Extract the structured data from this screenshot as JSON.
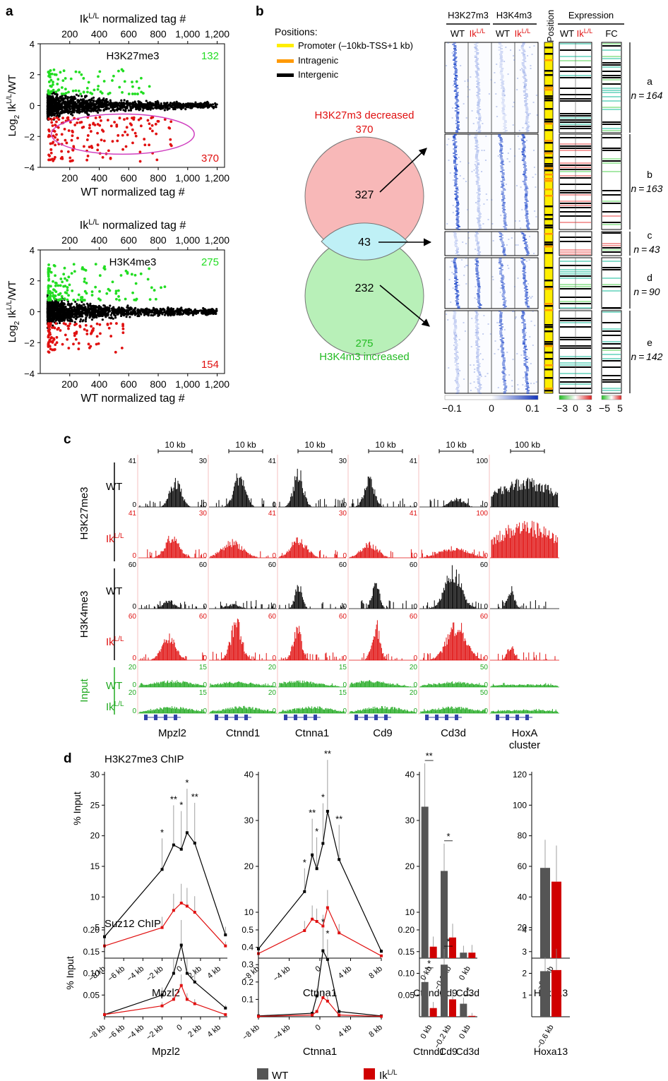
{
  "panel_labels": {
    "a": "a",
    "b": "b",
    "c": "c",
    "d": "d"
  },
  "colors": {
    "green": "#22dd22",
    "red": "#e01010",
    "black": "#000000",
    "blue": "#2244cc",
    "magenta": "#d040c0",
    "input_green": "#22aa22",
    "wt_bar": "#555555",
    "ik_bar": "#d00000"
  },
  "ik_label": {
    "base": "Ik",
    "sup": "L/L"
  },
  "panel_a": {
    "top_axis_title": "normalized tag #",
    "bottom_axis_title": "WT normalized tag #",
    "y_axis_title_prefix": "Log",
    "y_axis_title_sub": "2",
    "y_axis_title_suffix": "/WT",
    "x_ticks": [
      "200",
      "400",
      "600",
      "800",
      "1,000",
      "1,200"
    ],
    "y_ticks": [
      "4",
      "2",
      "0",
      "−2",
      "−4"
    ],
    "plots": [
      {
        "mark": "H3K27me3",
        "up_count": "132",
        "down_count": "370"
      },
      {
        "mark": "H3K4me3",
        "up_count": "275",
        "down_count": "154"
      }
    ]
  },
  "panel_b": {
    "positions_title": "Positions:",
    "legend": [
      {
        "label": "Promoter (–10kb-TSS+1 kb)",
        "color": "#ffee00"
      },
      {
        "label": "Intragenic",
        "color": "#ff9900"
      },
      {
        "label": "Intergenic",
        "color": "#000000"
      }
    ],
    "venn_top_title": "H3K27m3 decreased",
    "venn_top_total": "370",
    "venn_top_only": "327",
    "venn_overlap": "43",
    "venn_bottom_only": "232",
    "venn_bottom_total": "275",
    "venn_bottom_title": "H3K4m3 increased",
    "heatmap_headers": [
      "H3K27m3",
      "H3K4m3"
    ],
    "wt_label": "WT",
    "position_header": "Position",
    "expression_header": "Expression",
    "fc_label": "FC",
    "clusters": [
      {
        "label": "a",
        "n": "n = 164"
      },
      {
        "label": "b",
        "n": "n = 163"
      },
      {
        "label": "c",
        "n": "n = 43"
      },
      {
        "label": "d",
        "n": "n = 90"
      },
      {
        "label": "e",
        "n": "n = 142"
      }
    ],
    "heat_scale": [
      "−0.1",
      "0",
      "0.1"
    ],
    "expr_scale": [
      "−3",
      "0",
      "3"
    ],
    "fc_scale": [
      "−5",
      "5"
    ]
  },
  "panel_c": {
    "marks": [
      "H3K27me3",
      "H3K4me3"
    ],
    "input_label": "Input",
    "wt_label": "WT",
    "genes": [
      {
        "name": "Mpzl2",
        "scale": "10 kb",
        "k27_max": "41",
        "k4_max": "60",
        "input_max": "20"
      },
      {
        "name": "Ctnnd1",
        "scale": "10 kb",
        "k27_max": "30",
        "k4_max": "60",
        "input_max": "15"
      },
      {
        "name": "Ctnna1",
        "scale": "10 kb",
        "k27_max": "41",
        "k4_max": "60",
        "input_max": "20"
      },
      {
        "name": "Cd9",
        "scale": "10 kb",
        "k27_max": "30",
        "k4_max": "60",
        "input_max": "15"
      },
      {
        "name": "Cd3d",
        "scale": "10 kb",
        "k27_max": "41",
        "k4_max": "60",
        "input_max": "20"
      },
      {
        "name": "HoxA cluster",
        "scale": "100 kb",
        "k27_max": "100",
        "k4_max": "60",
        "input_max": "50"
      }
    ]
  },
  "panel_d": {
    "y_axis_title": "% Input",
    "legend": [
      "WT",
      "Ik"
    ],
    "chart_data": [
      {
        "type": "line",
        "title": "H3K27me3 ChIP",
        "xlabel": "Mpzl2",
        "ylabel": "% Input",
        "x_ticks": [
          "−8 kb",
          "−6 kb",
          "−4 kb",
          "−2 kb",
          "0",
          "2 kb",
          "4 kb"
        ],
        "x": [
          -8,
          -2,
          -0.8,
          0,
          0.6,
          1.4,
          4.6
        ],
        "ylim": [
          0,
          30
        ],
        "y_ticks": [
          "5",
          "10",
          "15",
          "20",
          "25",
          "30"
        ],
        "series": [
          {
            "name": "WT",
            "values": [
              3.5,
              14.5,
              18.5,
              17.8,
              20.5,
              18.8,
              3.8
            ]
          },
          {
            "name": "Ik L/L",
            "values": [
              2,
              5,
              7.8,
              9,
              8.5,
              7.5,
              2
            ]
          }
        ],
        "stars": [
          {
            "x": -2,
            "text": "*"
          },
          {
            "x": -0.8,
            "text": "**"
          },
          {
            "x": 0,
            "text": "*"
          },
          {
            "x": 0.6,
            "text": "*"
          },
          {
            "x": 1.4,
            "text": "**"
          }
        ]
      },
      {
        "type": "line",
        "title": "",
        "xlabel": "Ctnna1",
        "ylabel": "",
        "x_ticks": [
          "−8 kb",
          "−4 kb",
          "0",
          "4 kb",
          "8 kb"
        ],
        "x": [
          -8,
          -2,
          -1,
          -0.4,
          0.4,
          1,
          2.5,
          8
        ],
        "ylim": [
          0,
          40
        ],
        "y_ticks": [
          "10",
          "20",
          "30",
          "40"
        ],
        "series": [
          {
            "name": "WT",
            "values": [
              2,
              14.5,
              22.5,
              19.5,
              25,
              32,
              21.5,
              1.5
            ]
          },
          {
            "name": "Ik L/L",
            "values": [
              1,
              6,
              8.5,
              8,
              7,
              11,
              5.5,
              0.5
            ]
          }
        ],
        "stars": [
          {
            "x": -2,
            "text": "*"
          },
          {
            "x": -1,
            "text": "**"
          },
          {
            "x": -0.4,
            "text": "*"
          },
          {
            "x": 0.4,
            "text": "*"
          },
          {
            "x": 1,
            "text": "**"
          },
          {
            "x": 2.5,
            "text": "**"
          }
        ]
      },
      {
        "type": "bar",
        "title": "",
        "xlabel": "",
        "ylabel": "",
        "categories": [
          "Ctnnd1",
          "Cd9",
          "Cd3d"
        ],
        "category_ticks": [
          "0 kb",
          "−0.2 kb",
          "0 kb"
        ],
        "ylim": [
          0,
          40
        ],
        "y_ticks": [
          "10",
          "20",
          "30",
          "40"
        ],
        "series": [
          {
            "name": "WT",
            "values": [
              33,
              19,
              1.2
            ]
          },
          {
            "name": "Ik L/L",
            "values": [
              2.5,
              4.5,
              1.2
            ]
          }
        ],
        "stars": [
          "**",
          "*",
          ""
        ]
      },
      {
        "type": "bar",
        "title": "",
        "xlabel": "",
        "ylabel": "",
        "categories": [
          "Hoxa13"
        ],
        "category_ticks": [
          "−0.6 kb"
        ],
        "ylim": [
          0,
          120
        ],
        "y_ticks": [
          "20",
          "40",
          "60",
          "80",
          "100",
          "120"
        ],
        "series": [
          {
            "name": "WT",
            "values": [
              59
            ]
          },
          {
            "name": "Ik L/L",
            "values": [
              50
            ]
          }
        ],
        "stars": [
          ""
        ]
      },
      {
        "type": "line",
        "title": "Suz12 ChIP",
        "xlabel": "Mpzl2",
        "ylabel": "% Input",
        "x_ticks": [
          "−8 kb",
          "−6 kb",
          "−4 kb",
          "−2 kb",
          "0",
          "2 kb",
          "4 kb"
        ],
        "x": [
          -8,
          -2,
          -0.8,
          0,
          0.6,
          1.4,
          4.6
        ],
        "ylim": [
          0,
          0.2
        ],
        "y_ticks": [
          "0.05",
          "0.10",
          "0.15",
          "0.20"
        ],
        "series": [
          {
            "name": "WT",
            "values": [
              0.005,
              0.05,
              0.1,
              0.165,
              0.1,
              0.08,
              0.02
            ]
          },
          {
            "name": "Ik L/L",
            "values": [
              0.005,
              0.025,
              0.04,
              0.072,
              0.04,
              0.03,
              0.005
            ]
          }
        ],
        "stars": []
      },
      {
        "type": "line",
        "title": "",
        "xlabel": "Ctnna1",
        "ylabel": "",
        "x_ticks": [
          "−8 kb",
          "−4 kb",
          "0",
          "4 kb",
          "8 kb"
        ],
        "x": [
          -8,
          -1,
          -0.4,
          0.4,
          1,
          2.5,
          8
        ],
        "ylim": [
          0,
          0.5
        ],
        "y_ticks": [
          "0.1",
          "0.2",
          "0.3",
          "0.4",
          "0.5"
        ],
        "series": [
          {
            "name": "WT",
            "values": [
              0.005,
              0.02,
              0.12,
              0.38,
              0.33,
              0.03,
              0.005
            ]
          },
          {
            "name": "Ik L/L",
            "values": [
              0.002,
              0.01,
              0.03,
              0.11,
              0.09,
              0.01,
              0.002
            ]
          }
        ],
        "stars": [
          {
            "x": 0.4,
            "text": "*"
          },
          {
            "x": 1,
            "text": "*"
          }
        ]
      },
      {
        "type": "bar",
        "title": "",
        "xlabel": "",
        "ylabel": "",
        "categories": [
          "Ctnnd1",
          "Cd9",
          "Cd3d"
        ],
        "category_ticks": [
          "0 kb",
          "−0.2 kb",
          "0 kb"
        ],
        "ylim": [
          0,
          0.2
        ],
        "y_ticks": [
          "0.05",
          "0.10",
          "0.15",
          "0.20"
        ],
        "series": [
          {
            "name": "WT",
            "values": [
              0.08,
              0.12,
              0.03
            ]
          },
          {
            "name": "Ik L/L",
            "values": [
              0.02,
              0.04,
              0.002
            ]
          }
        ],
        "stars": [
          "*",
          "*",
          "*"
        ]
      },
      {
        "type": "bar",
        "title": "",
        "xlabel": "",
        "ylabel": "",
        "categories": [
          "Hoxa13"
        ],
        "category_ticks": [
          "−0.6 kb"
        ],
        "ylim": [
          0,
          4
        ],
        "y_ticks": [
          "1",
          "2",
          "3",
          "4"
        ],
        "series": [
          {
            "name": "WT",
            "values": [
              2.1
            ]
          },
          {
            "name": "Ik L/L",
            "values": [
              2.15
            ]
          }
        ],
        "stars": [
          ""
        ]
      }
    ]
  }
}
